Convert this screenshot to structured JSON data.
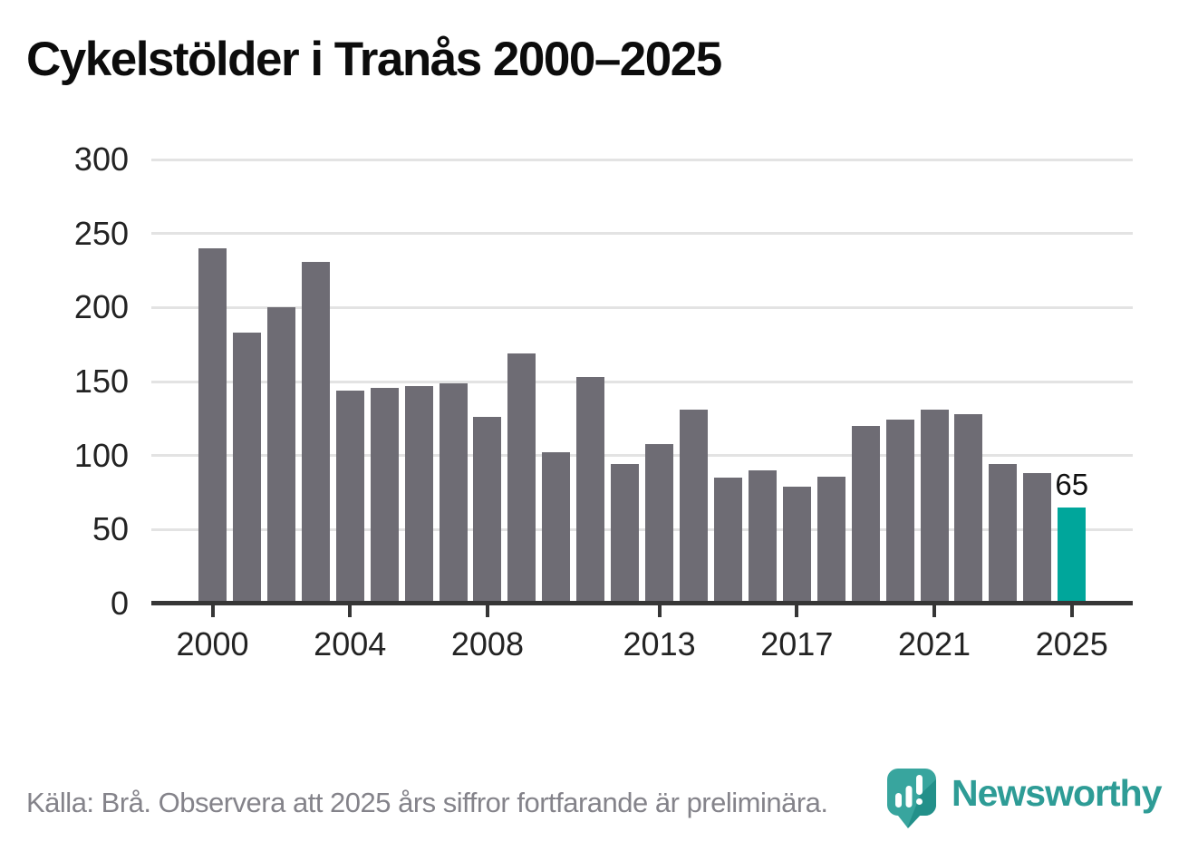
{
  "title": "Cykelstölder i Tranås 2000–2025",
  "footer": {
    "source_note": "Källa: Brå. Observera att 2025 års siffror fortfarande är preliminära.",
    "brand": "Newsworthy"
  },
  "colors": {
    "bar": "#6e6c74",
    "highlight": "#00a69b",
    "gridline": "#e3e3e3",
    "axis": "#363636",
    "tick_label": "#232323",
    "title": "#0c0c0c",
    "footer_text": "#84838a",
    "brand_teal": "#2e9c96",
    "annotation": "#111111"
  },
  "chart_data": {
    "type": "bar",
    "title": "Cykelstölder i Tranås 2000–2025",
    "categories": [
      2000,
      2001,
      2002,
      2003,
      2004,
      2005,
      2006,
      2007,
      2008,
      2009,
      2010,
      2011,
      2012,
      2013,
      2014,
      2015,
      2016,
      2017,
      2018,
      2019,
      2020,
      2021,
      2022,
      2023,
      2024,
      2025
    ],
    "values": [
      240,
      183,
      200,
      231,
      144,
      146,
      147,
      149,
      126,
      169,
      102,
      153,
      94,
      108,
      131,
      85,
      90,
      79,
      86,
      120,
      124,
      131,
      128,
      94,
      88,
      65
    ],
    "highlight_year": 2025,
    "data_label": {
      "year": 2025,
      "text": "65"
    },
    "xticks": [
      2000,
      2004,
      2008,
      2013,
      2017,
      2021,
      2025
    ],
    "yticks": [
      0,
      50,
      100,
      150,
      200,
      250,
      300
    ],
    "ylim": [
      0,
      300
    ],
    "xlabel": "",
    "ylabel": "",
    "grid": "horizontal",
    "legend": "none"
  }
}
